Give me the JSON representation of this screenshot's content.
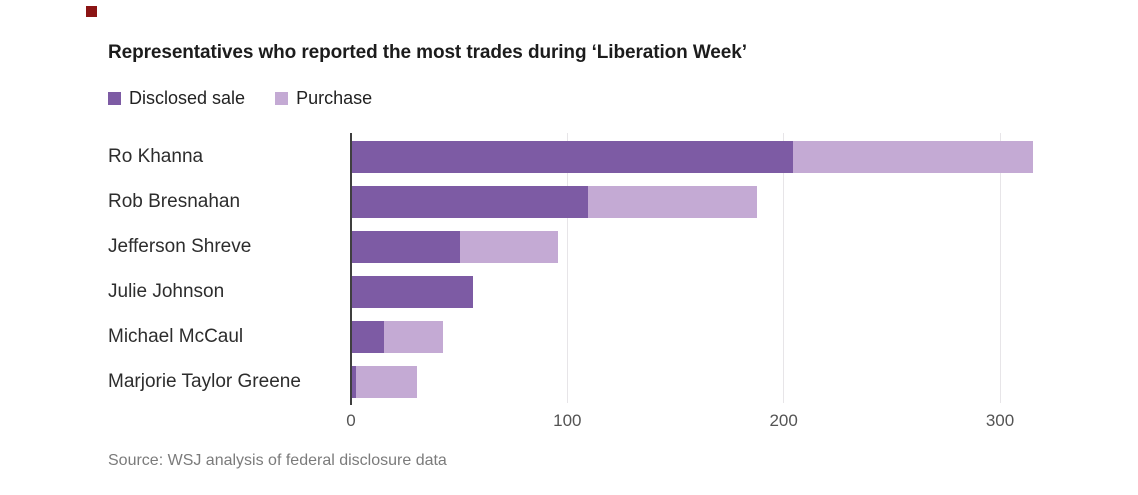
{
  "brand": {
    "mark_color": "#8b1414"
  },
  "title": "Representatives who reported the most trades during ‘Liberation Week’",
  "legend": {
    "items": [
      {
        "label": "Disclosed sale",
        "color": "#7d5ba4"
      },
      {
        "label": "Purchase",
        "color": "#c4aad4"
      }
    ]
  },
  "source": "Source: WSJ analysis of federal disclosure data",
  "colors": {
    "disclosed_sale": "#7d5ba4",
    "purchase": "#c4aad4",
    "gridline": "#e7e5e8",
    "zero_axis": "#3f3f3f",
    "tick_text": "#545454"
  },
  "chart_data": {
    "type": "bar",
    "orientation": "horizontal",
    "stacked": true,
    "title": "Representatives who reported the most trades during ‘Liberation Week’",
    "categories": [
      "Ro Khanna",
      "Rob Bresnahan",
      "Jefferson Shreve",
      "Julie Johnson",
      "Michael McCaul",
      "Marjorie Taylor Greene"
    ],
    "series": [
      {
        "name": "Disclosed sale",
        "color": "#7d5ba4",
        "values": [
          204,
          109,
          50,
          56,
          15,
          2
        ]
      },
      {
        "name": "Purchase",
        "color": "#c4aad4",
        "values": [
          111,
          78,
          45,
          0,
          27,
          28
        ]
      }
    ],
    "totals": [
      315,
      187,
      95,
      56,
      42,
      30
    ],
    "x_ticks": [
      0,
      100,
      200,
      300
    ],
    "xlabel": "",
    "ylabel": "",
    "xlim": [
      0,
      364
    ],
    "grid": true,
    "legend_position": "top-left"
  }
}
